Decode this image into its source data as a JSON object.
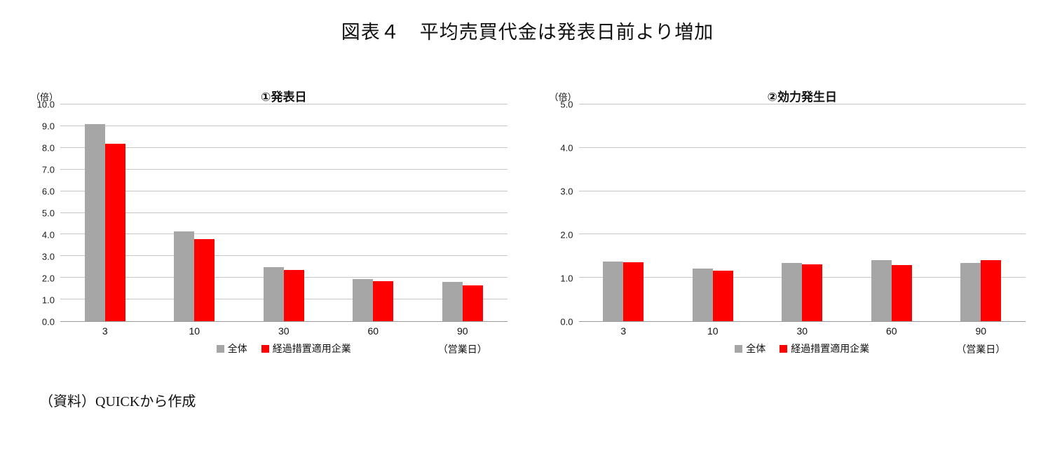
{
  "page": {
    "title": "図表４　平均売買代金は発表日前より増加",
    "source_note": "（資料）QUICKから作成"
  },
  "colors": {
    "series_all": "#a6a6a6",
    "series_transitional": "#ff0000",
    "gridline": "#c6c6c6",
    "axis": "#999999"
  },
  "chart_data": [
    {
      "type": "bar",
      "title": "①発表日",
      "unit_label": "（倍）",
      "categories": [
        "3",
        "10",
        "30",
        "60",
        "90"
      ],
      "xlabel_suffix": "（営業日）",
      "series": [
        {
          "name": "全体",
          "color": "#a6a6a6",
          "values": [
            9.1,
            4.15,
            2.5,
            1.95,
            1.8
          ]
        },
        {
          "name": "経過措置適用企業",
          "color": "#ff0000",
          "values": [
            8.2,
            3.8,
            2.35,
            1.85,
            1.65
          ]
        }
      ],
      "ylim": [
        0,
        10
      ],
      "ytick_step": 1.0,
      "grid": true,
      "legend_position": "bottom"
    },
    {
      "type": "bar",
      "title": "②効力発生日",
      "unit_label": "（倍）",
      "categories": [
        "3",
        "10",
        "30",
        "60",
        "90"
      ],
      "xlabel_suffix": "（営業日）",
      "series": [
        {
          "name": "全体",
          "color": "#a6a6a6",
          "values": [
            1.38,
            1.22,
            1.35,
            1.4,
            1.35
          ]
        },
        {
          "name": "経過措置適用企業",
          "color": "#ff0000",
          "values": [
            1.36,
            1.17,
            1.31,
            1.3,
            1.4
          ]
        }
      ],
      "ylim": [
        0,
        5
      ],
      "ytick_step": 1.0,
      "grid": true,
      "legend_position": "bottom"
    }
  ]
}
